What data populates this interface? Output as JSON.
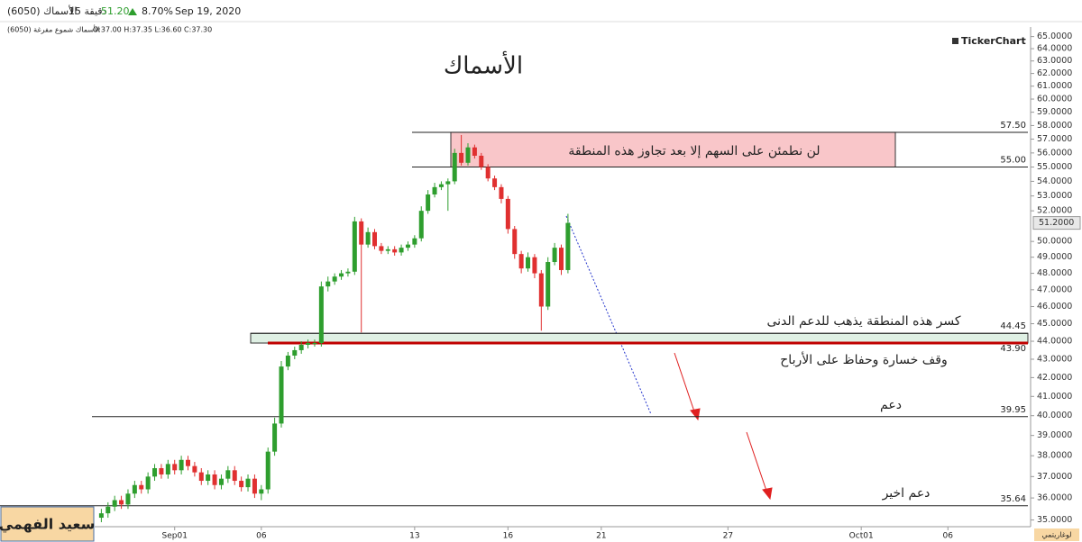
{
  "chart_data": {
    "type": "candlestick",
    "title": "الأسماك",
    "header": {
      "symbol": "(6050) الأسماك",
      "interval": "15 دقيقة",
      "price": "51.20",
      "change": "8.70%",
      "date": "Sep 19, 2020"
    },
    "series_label": "الأسماك شموع مفرغة (6050)",
    "ohlc_label": "O:37.00 H:37.35 L:36.60 C:37.30",
    "logo": "TickerChart",
    "scale_label": "لوغاريتمي",
    "author": "سعيد الفهمي",
    "log_scale": true,
    "up_color": "#2e9e2e",
    "down_color": "#e03030",
    "xlim": [
      0,
      140
    ],
    "ylim": [
      34.5,
      65.8
    ],
    "xticks": [
      {
        "value": 12,
        "label": "Sep01"
      },
      {
        "value": 25,
        "label": "06"
      },
      {
        "value": 48,
        "label": "13"
      },
      {
        "value": 62,
        "label": "16"
      },
      {
        "value": 76,
        "label": "21"
      },
      {
        "value": 95,
        "label": "27"
      },
      {
        "value": 115,
        "label": "Oct01"
      },
      {
        "value": 128,
        "label": "06"
      }
    ],
    "yticks": [
      {
        "value": 35,
        "label": "35.0000"
      },
      {
        "value": 36,
        "label": "36.0000"
      },
      {
        "value": 37,
        "label": "37.0000"
      },
      {
        "value": 38,
        "label": "38.0000"
      },
      {
        "value": 39,
        "label": "39.0000"
      },
      {
        "value": 40,
        "label": "40.0000"
      },
      {
        "value": 41,
        "label": "41.0000"
      },
      {
        "value": 42,
        "label": "42.0000"
      },
      {
        "value": 43,
        "label": "43.0000"
      },
      {
        "value": 44,
        "label": "44.0000"
      },
      {
        "value": 45,
        "label": "45.0000"
      },
      {
        "value": 46,
        "label": "46.0000"
      },
      {
        "value": 47,
        "label": "47.0000"
      },
      {
        "value": 48,
        "label": "48.0000"
      },
      {
        "value": 49,
        "label": "49.0000"
      },
      {
        "value": 50,
        "label": "50.0000"
      },
      {
        "value": 52,
        "label": "52.0000"
      },
      {
        "value": 53,
        "label": "53.0000"
      },
      {
        "value": 54,
        "label": "54.0000"
      },
      {
        "value": 55,
        "label": "55.0000"
      },
      {
        "value": 56,
        "label": "56.0000"
      },
      {
        "value": 57,
        "label": "57.0000"
      },
      {
        "value": 58,
        "label": "58.0000"
      },
      {
        "value": 59,
        "label": "59.0000"
      },
      {
        "value": 60,
        "label": "60.0000"
      },
      {
        "value": 61,
        "label": "61.0000"
      },
      {
        "value": 62,
        "label": "62.0000"
      },
      {
        "value": 63,
        "label": "63.0000"
      },
      {
        "value": 64,
        "label": "64.0000"
      },
      {
        "value": 65,
        "label": "65.0000"
      }
    ],
    "last_price": {
      "value": 51.2,
      "label": "51.2000"
    },
    "x": [
      1,
      2,
      3,
      4,
      5,
      6,
      7,
      8,
      9,
      10,
      11,
      12,
      13,
      14,
      15,
      16,
      17,
      18,
      19,
      20,
      21,
      22,
      23,
      24,
      25,
      26,
      27,
      28,
      29,
      30,
      31,
      32,
      33,
      34,
      35,
      36,
      37,
      38,
      39,
      40,
      41,
      42,
      43,
      44,
      45,
      46,
      47,
      48,
      49,
      50,
      51,
      52,
      53,
      54,
      55,
      56,
      57,
      58,
      59,
      60,
      61,
      62,
      63,
      64,
      65,
      66,
      67,
      68,
      69,
      70,
      71
    ],
    "open": [
      35.1,
      35.3,
      35.6,
      35.9,
      35.7,
      36.2,
      36.6,
      36.4,
      37.0,
      37.4,
      37.1,
      37.6,
      37.3,
      37.8,
      37.5,
      37.2,
      36.8,
      37.1,
      36.6,
      36.9,
      37.3,
      36.8,
      36.5,
      36.9,
      36.2,
      36.4,
      38.2,
      39.6,
      42.6,
      43.2,
      43.5,
      43.8,
      43.9,
      43.9,
      47.2,
      47.5,
      47.8,
      48.0,
      48.1,
      51.3,
      49.8,
      50.6,
      49.7,
      49.4,
      49.5,
      49.3,
      49.6,
      49.8,
      50.2,
      52.0,
      53.1,
      53.6,
      53.8,
      54.0,
      56.0,
      55.3,
      56.4,
      55.8,
      55.0,
      54.2,
      53.6,
      52.8,
      50.8,
      49.2,
      48.3,
      49.0,
      48.0,
      46.0,
      48.7,
      49.6,
      48.2
    ],
    "high": [
      35.5,
      35.8,
      36.1,
      36.1,
      36.4,
      36.8,
      36.8,
      37.2,
      37.6,
      37.6,
      37.8,
      37.8,
      38.0,
      38.0,
      37.7,
      37.4,
      37.3,
      37.3,
      37.1,
      37.5,
      37.5,
      37.0,
      37.1,
      37.1,
      36.6,
      38.4,
      39.9,
      42.9,
      43.4,
      43.7,
      44.0,
      44.1,
      44.1,
      47.5,
      47.8,
      48.0,
      48.2,
      48.3,
      51.6,
      51.5,
      50.9,
      50.8,
      49.9,
      49.7,
      49.7,
      49.8,
      50.0,
      50.4,
      52.3,
      53.4,
      53.9,
      54.0,
      54.2,
      56.3,
      57.3,
      56.7,
      56.6,
      56.0,
      55.2,
      54.4,
      53.8,
      53.0,
      51.0,
      49.4,
      49.3,
      49.2,
      48.2,
      49.0,
      49.9,
      49.8,
      51.8
    ],
    "low": [
      34.9,
      35.1,
      35.4,
      35.5,
      35.5,
      36.0,
      36.2,
      36.2,
      36.8,
      36.9,
      36.9,
      37.1,
      37.1,
      37.3,
      37.0,
      36.6,
      36.6,
      36.4,
      36.4,
      36.7,
      36.6,
      36.3,
      36.3,
      36.0,
      35.9,
      36.2,
      38.0,
      39.4,
      42.4,
      43.0,
      43.3,
      43.6,
      43.7,
      43.7,
      46.9,
      47.3,
      47.6,
      47.8,
      47.9,
      44.5,
      49.6,
      49.5,
      49.2,
      49.2,
      49.1,
      49.1,
      49.4,
      49.6,
      50.0,
      51.8,
      52.9,
      53.4,
      52.0,
      53.8,
      55.1,
      55.1,
      55.6,
      54.8,
      54.0,
      53.4,
      52.5,
      50.5,
      48.9,
      48.0,
      48.1,
      47.7,
      44.6,
      45.8,
      48.5,
      47.9,
      48.0
    ],
    "close": [
      35.3,
      35.6,
      35.9,
      35.7,
      36.2,
      36.6,
      36.4,
      37.0,
      37.4,
      37.1,
      37.6,
      37.3,
      37.8,
      37.5,
      37.2,
      36.8,
      37.1,
      36.6,
      36.9,
      37.3,
      36.8,
      36.5,
      36.9,
      36.2,
      36.4,
      38.2,
      39.6,
      42.6,
      43.2,
      43.5,
      43.8,
      43.9,
      43.9,
      47.2,
      47.5,
      47.8,
      48.0,
      48.1,
      51.3,
      49.8,
      50.6,
      49.7,
      49.4,
      49.5,
      49.3,
      49.6,
      49.8,
      50.2,
      52.0,
      53.1,
      53.6,
      53.8,
      54.0,
      56.0,
      55.3,
      56.4,
      55.8,
      55.0,
      54.2,
      53.6,
      52.8,
      50.8,
      49.2,
      48.3,
      49.0,
      48.0,
      46.0,
      48.7,
      49.6,
      48.2,
      51.2
    ],
    "levels": [
      {
        "value": 57.5,
        "label": "57.50"
      },
      {
        "value": 55.0,
        "label": "55.00"
      },
      {
        "value": 44.45,
        "label": "44.45"
      },
      {
        "value": 43.9,
        "label": "43.90"
      },
      {
        "value": 39.95,
        "label": "39.95"
      },
      {
        "value": 35.64,
        "label": "35.64"
      }
    ],
    "annotations": [
      "لن نطمئن على السهم إلا بعد تجاوز هذه المنطقة",
      "كسر هذه المنطقة يذهب للدعم الدنى",
      "وقف خسارة وحفاظ على الأرباح",
      "دعم",
      "دعم اخير"
    ]
  }
}
